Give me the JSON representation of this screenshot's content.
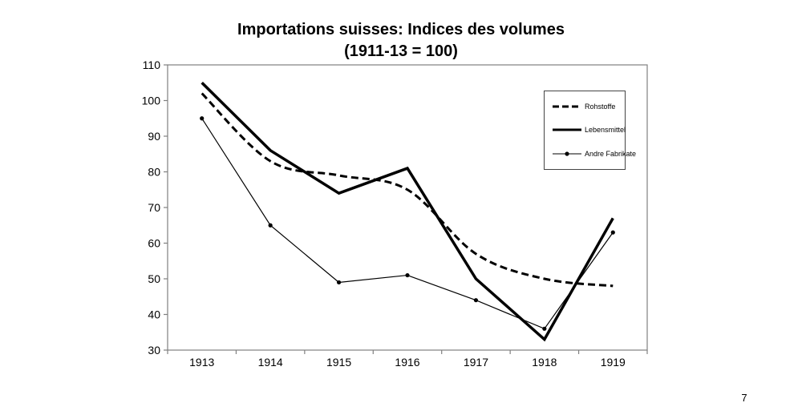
{
  "page": {
    "number": "7"
  },
  "chart_data": {
    "type": "line",
    "title": "Importations suisses: Indices des volumes",
    "subtitle": "(1911-13 = 100)",
    "categories": [
      "1913",
      "1914",
      "1915",
      "1916",
      "1917",
      "1918",
      "1919"
    ],
    "series": [
      {
        "name": "Rohstoffe",
        "style": "dashed-thick",
        "smoothed": true,
        "values": [
          102,
          83,
          79,
          75,
          57,
          50,
          48
        ]
      },
      {
        "name": "Lebensmittel",
        "style": "solid-thick",
        "smoothed": false,
        "values": [
          105,
          86,
          74,
          81,
          50,
          33,
          67
        ]
      },
      {
        "name": "Andre Fabrikate",
        "style": "thin-marker",
        "smoothed": false,
        "values": [
          95,
          65,
          49,
          51,
          44,
          36,
          63
        ]
      }
    ],
    "y_axis": {
      "min": 30,
      "max": 110,
      "step": 10,
      "ticks": [
        110,
        100,
        90,
        80,
        70,
        60,
        50,
        40,
        30
      ]
    },
    "x_axis": {
      "label_values": [
        "1913",
        "1914",
        "1915",
        "1916",
        "1917",
        "1918",
        "1919"
      ]
    },
    "legend_position": "inside-top-right",
    "grid": false,
    "colors": {
      "line": "#000000",
      "axis": "#808080",
      "text": "#000000",
      "background": "#ffffff"
    }
  }
}
